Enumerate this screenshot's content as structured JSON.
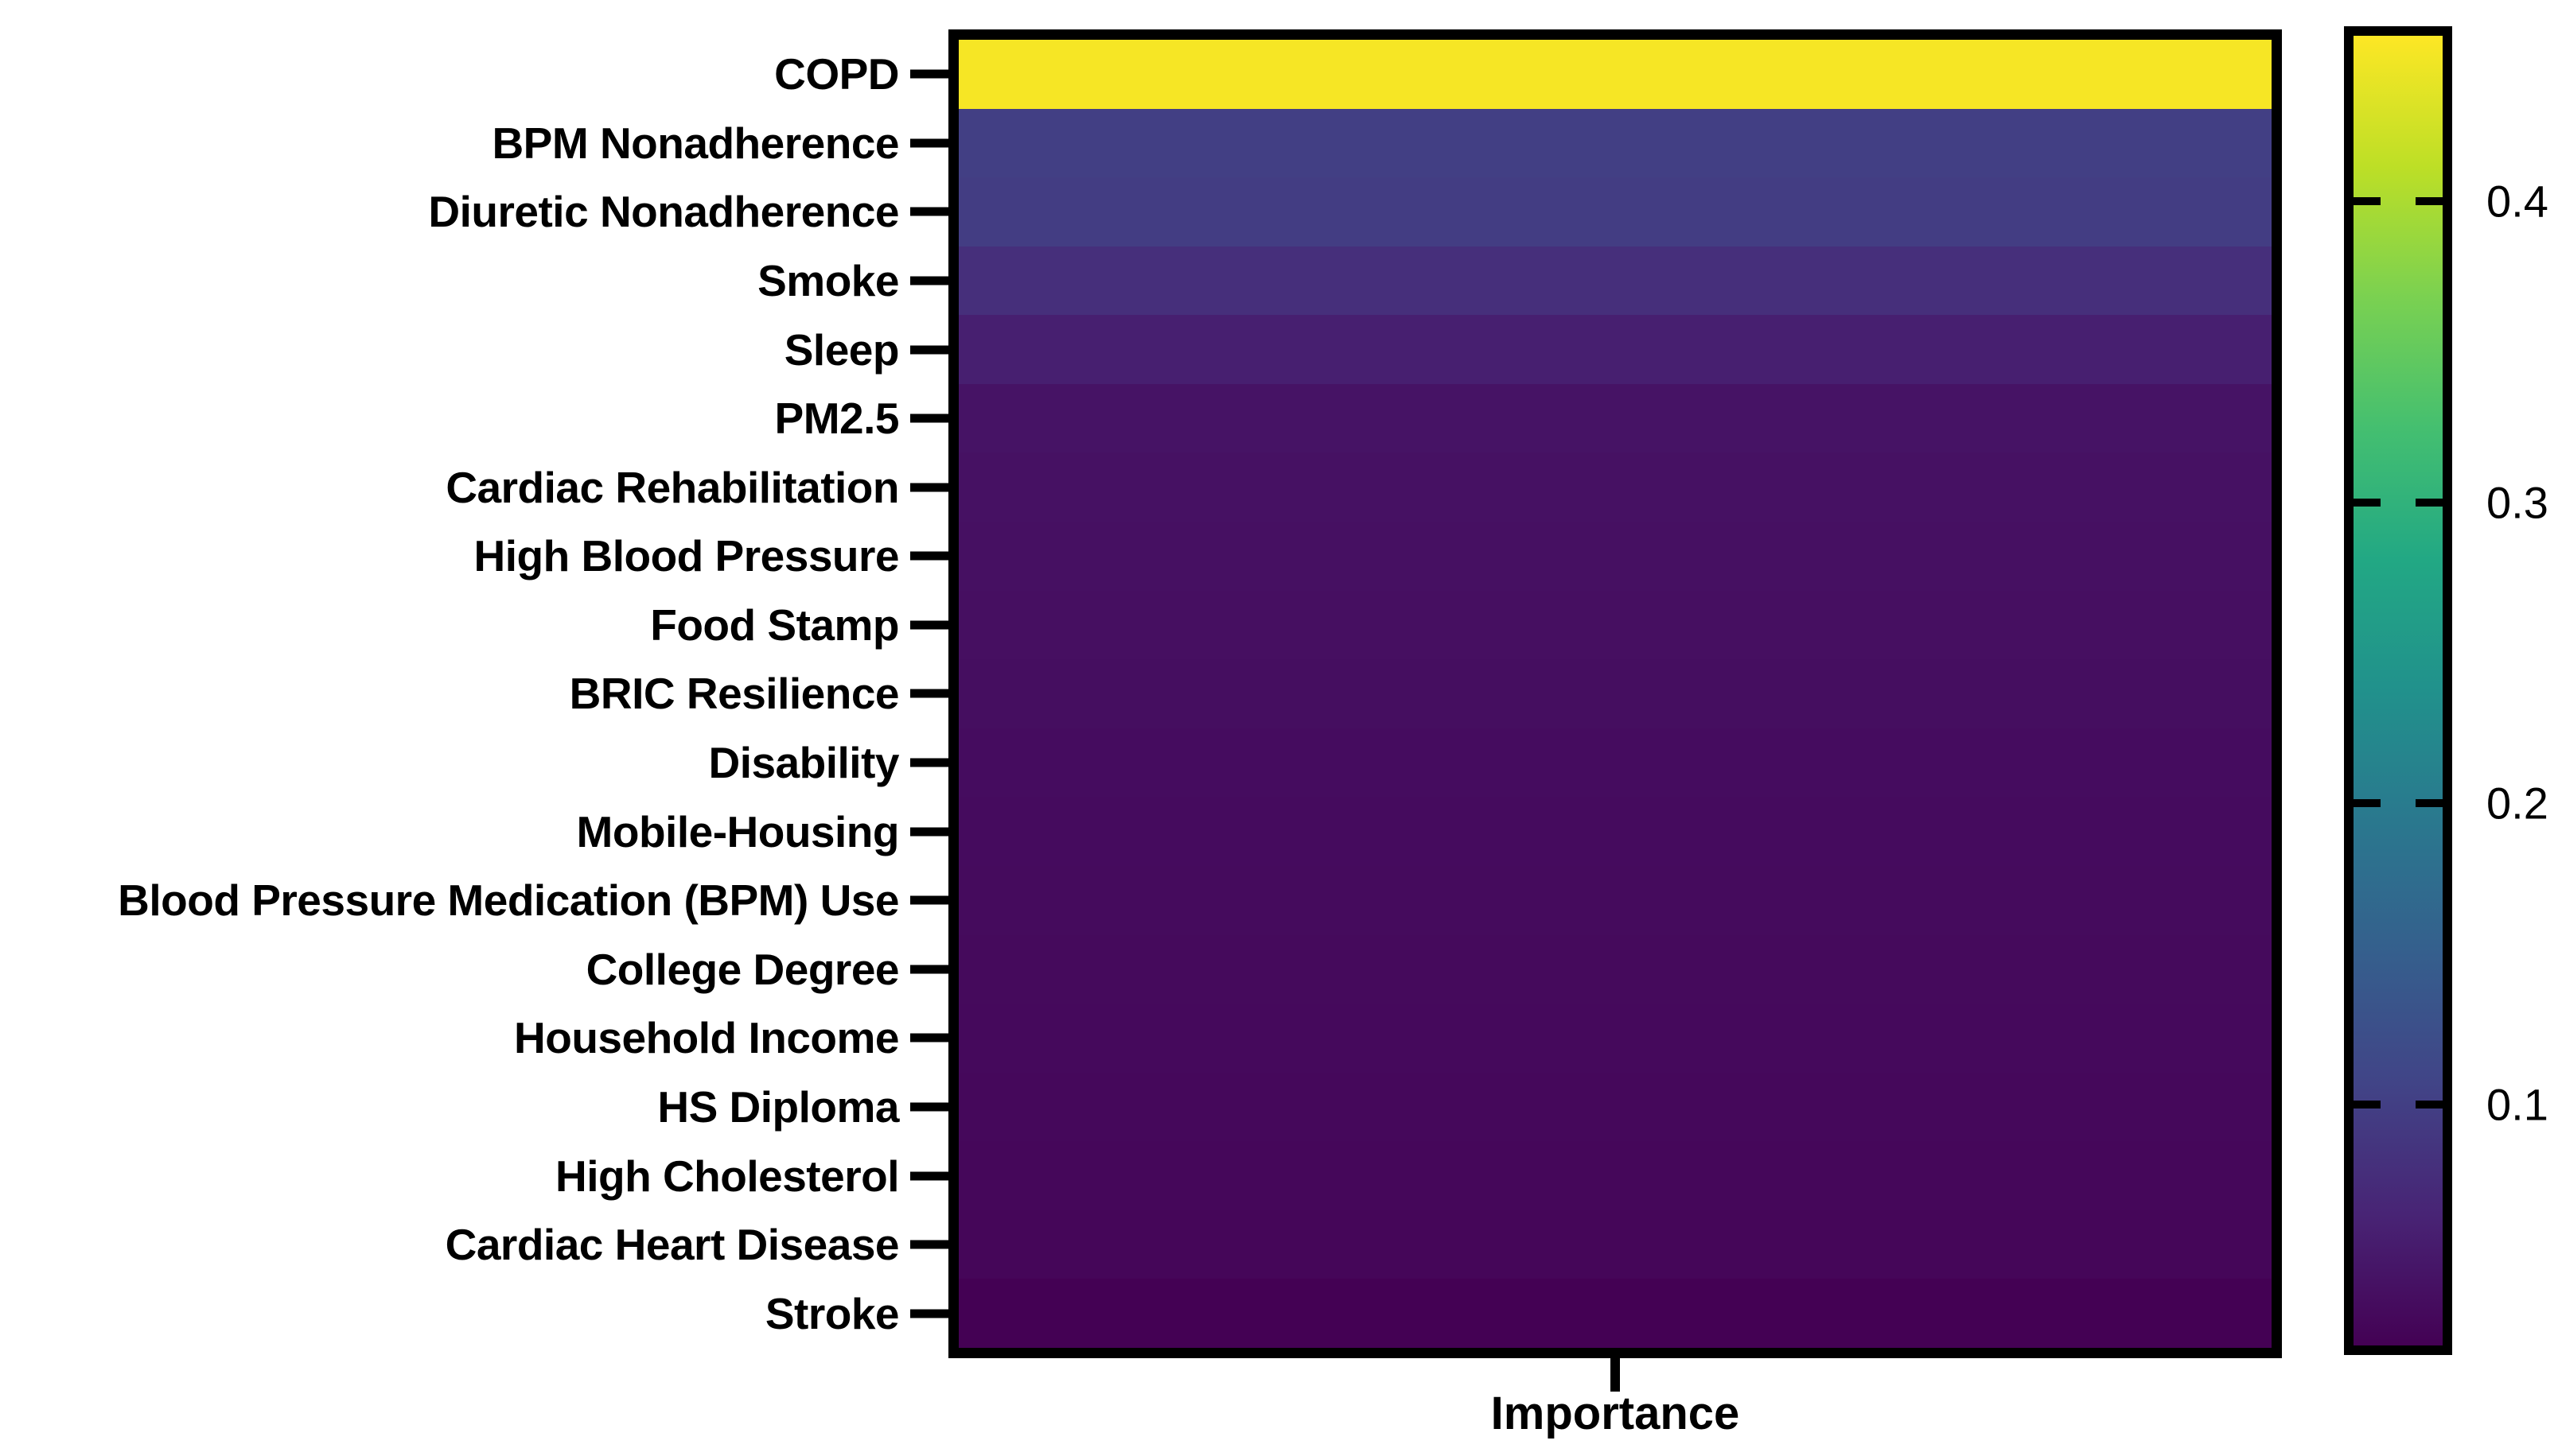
{
  "chart_data": {
    "type": "heatmap",
    "title": "",
    "xlabel": "Importance",
    "ylabel": "",
    "categories": [
      "COPD",
      "BPM Nonadherence",
      "Diuretic Nonadherence",
      "Smoke",
      "Sleep",
      "PM2.5",
      "Cardiac Rehabilitation",
      "High Blood Pressure",
      "Food Stamp",
      "BRIC Resilience",
      "Disability",
      "Mobile-Housing",
      "Blood Pressure Medication (BPM) Use",
      "College Degree",
      "Household Income",
      "HS Diploma",
      "High Cholesterol",
      "Cardiac Heart Disease",
      "Stroke"
    ],
    "values": [
      0.45,
      0.1,
      0.097,
      0.078,
      0.057,
      0.042,
      0.04,
      0.039,
      0.037,
      0.036,
      0.034,
      0.033,
      0.032,
      0.031,
      0.03,
      0.029,
      0.028,
      0.026,
      0.02
    ],
    "vmin": 0.02,
    "vmax": 0.455,
    "grid": false,
    "legend_position": "right-colorbar",
    "colorbar": {
      "ticks": [
        {
          "value": 0.4,
          "label": "0.4"
        },
        {
          "value": 0.3,
          "label": "0.3"
        },
        {
          "value": 0.2,
          "label": "0.2"
        },
        {
          "value": 0.1,
          "label": "0.1"
        }
      ]
    },
    "colormap": {
      "name": "viridis",
      "stops": [
        "#440154",
        "#482475",
        "#414487",
        "#355f8d",
        "#2a788e",
        "#21918c",
        "#22a884",
        "#44bf70",
        "#7ad151",
        "#bddf26",
        "#fde725"
      ]
    },
    "colors": {
      "frame": "#000000",
      "background": "#ffffff",
      "text": "#000000"
    }
  }
}
